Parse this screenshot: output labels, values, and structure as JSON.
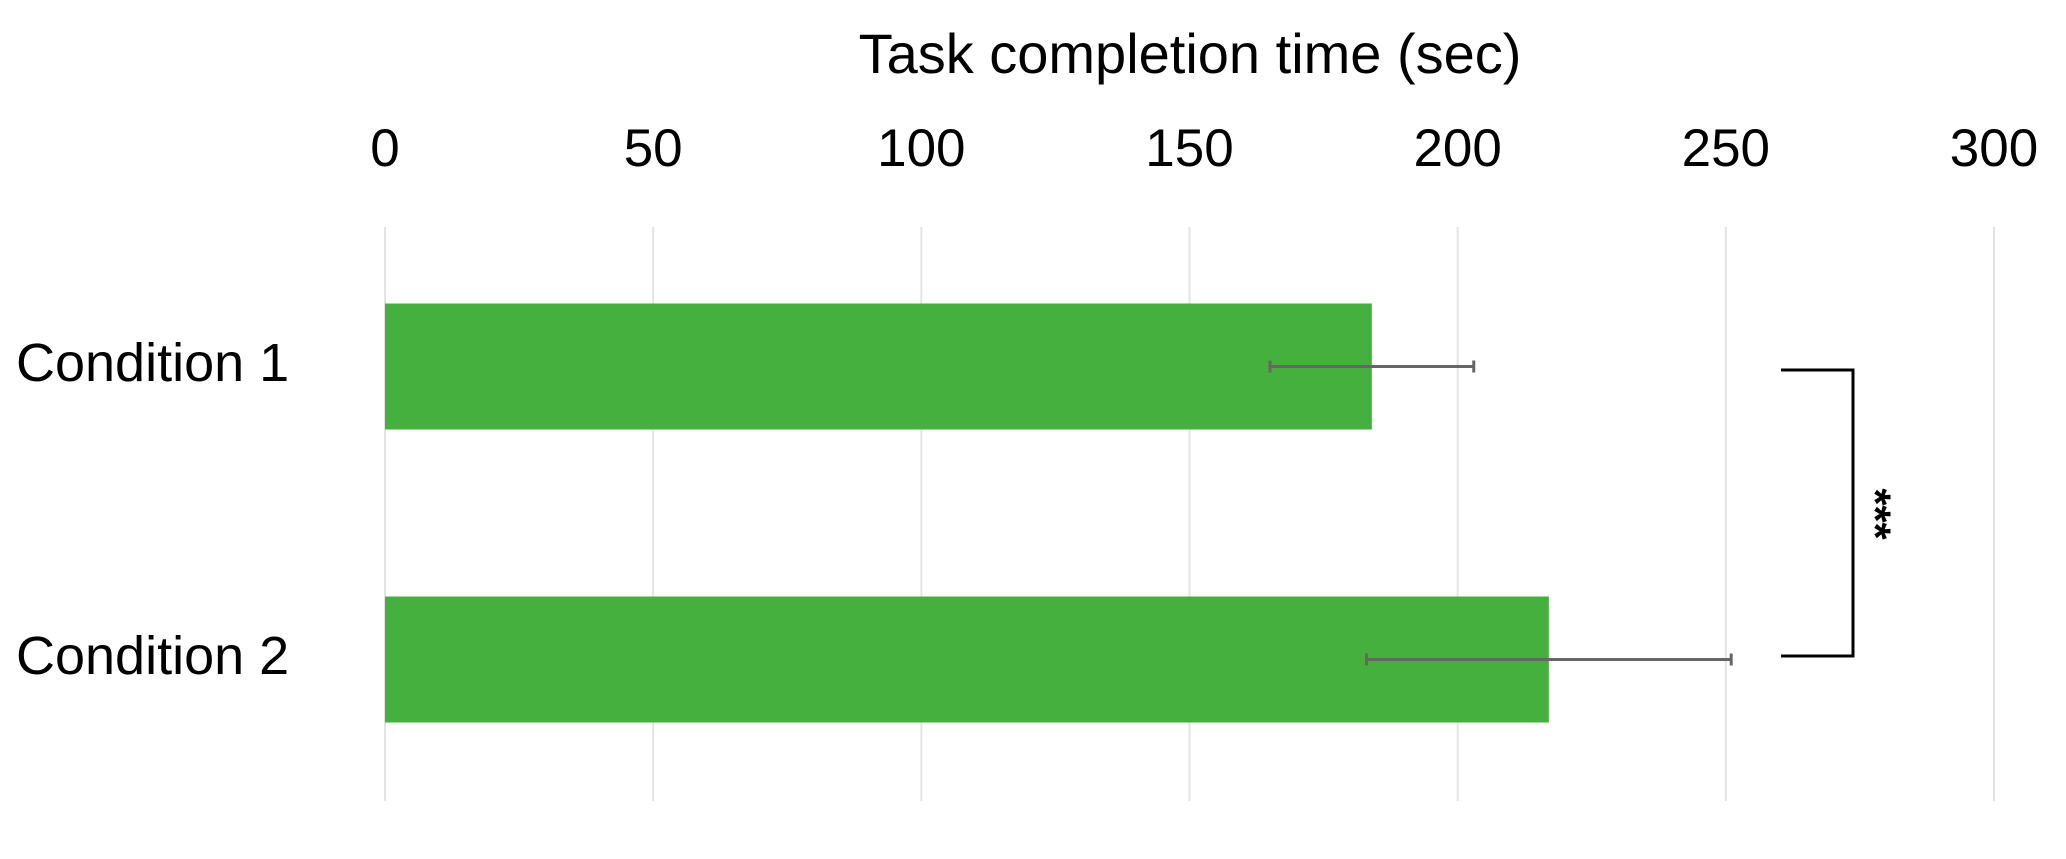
{
  "chart_data": {
    "type": "bar",
    "orientation": "horizontal",
    "title": "Task completion time (sec)",
    "categories": [
      "Condition 1",
      "Condition 2"
    ],
    "values": [
      184,
      217
    ],
    "errors": [
      19,
      34
    ],
    "color": "#45b03d",
    "error_color": "#666666",
    "xlim": [
      0,
      300
    ],
    "xticks": [
      0,
      50,
      100,
      150,
      200,
      250,
      300
    ],
    "grid": true,
    "annotation": "***"
  }
}
